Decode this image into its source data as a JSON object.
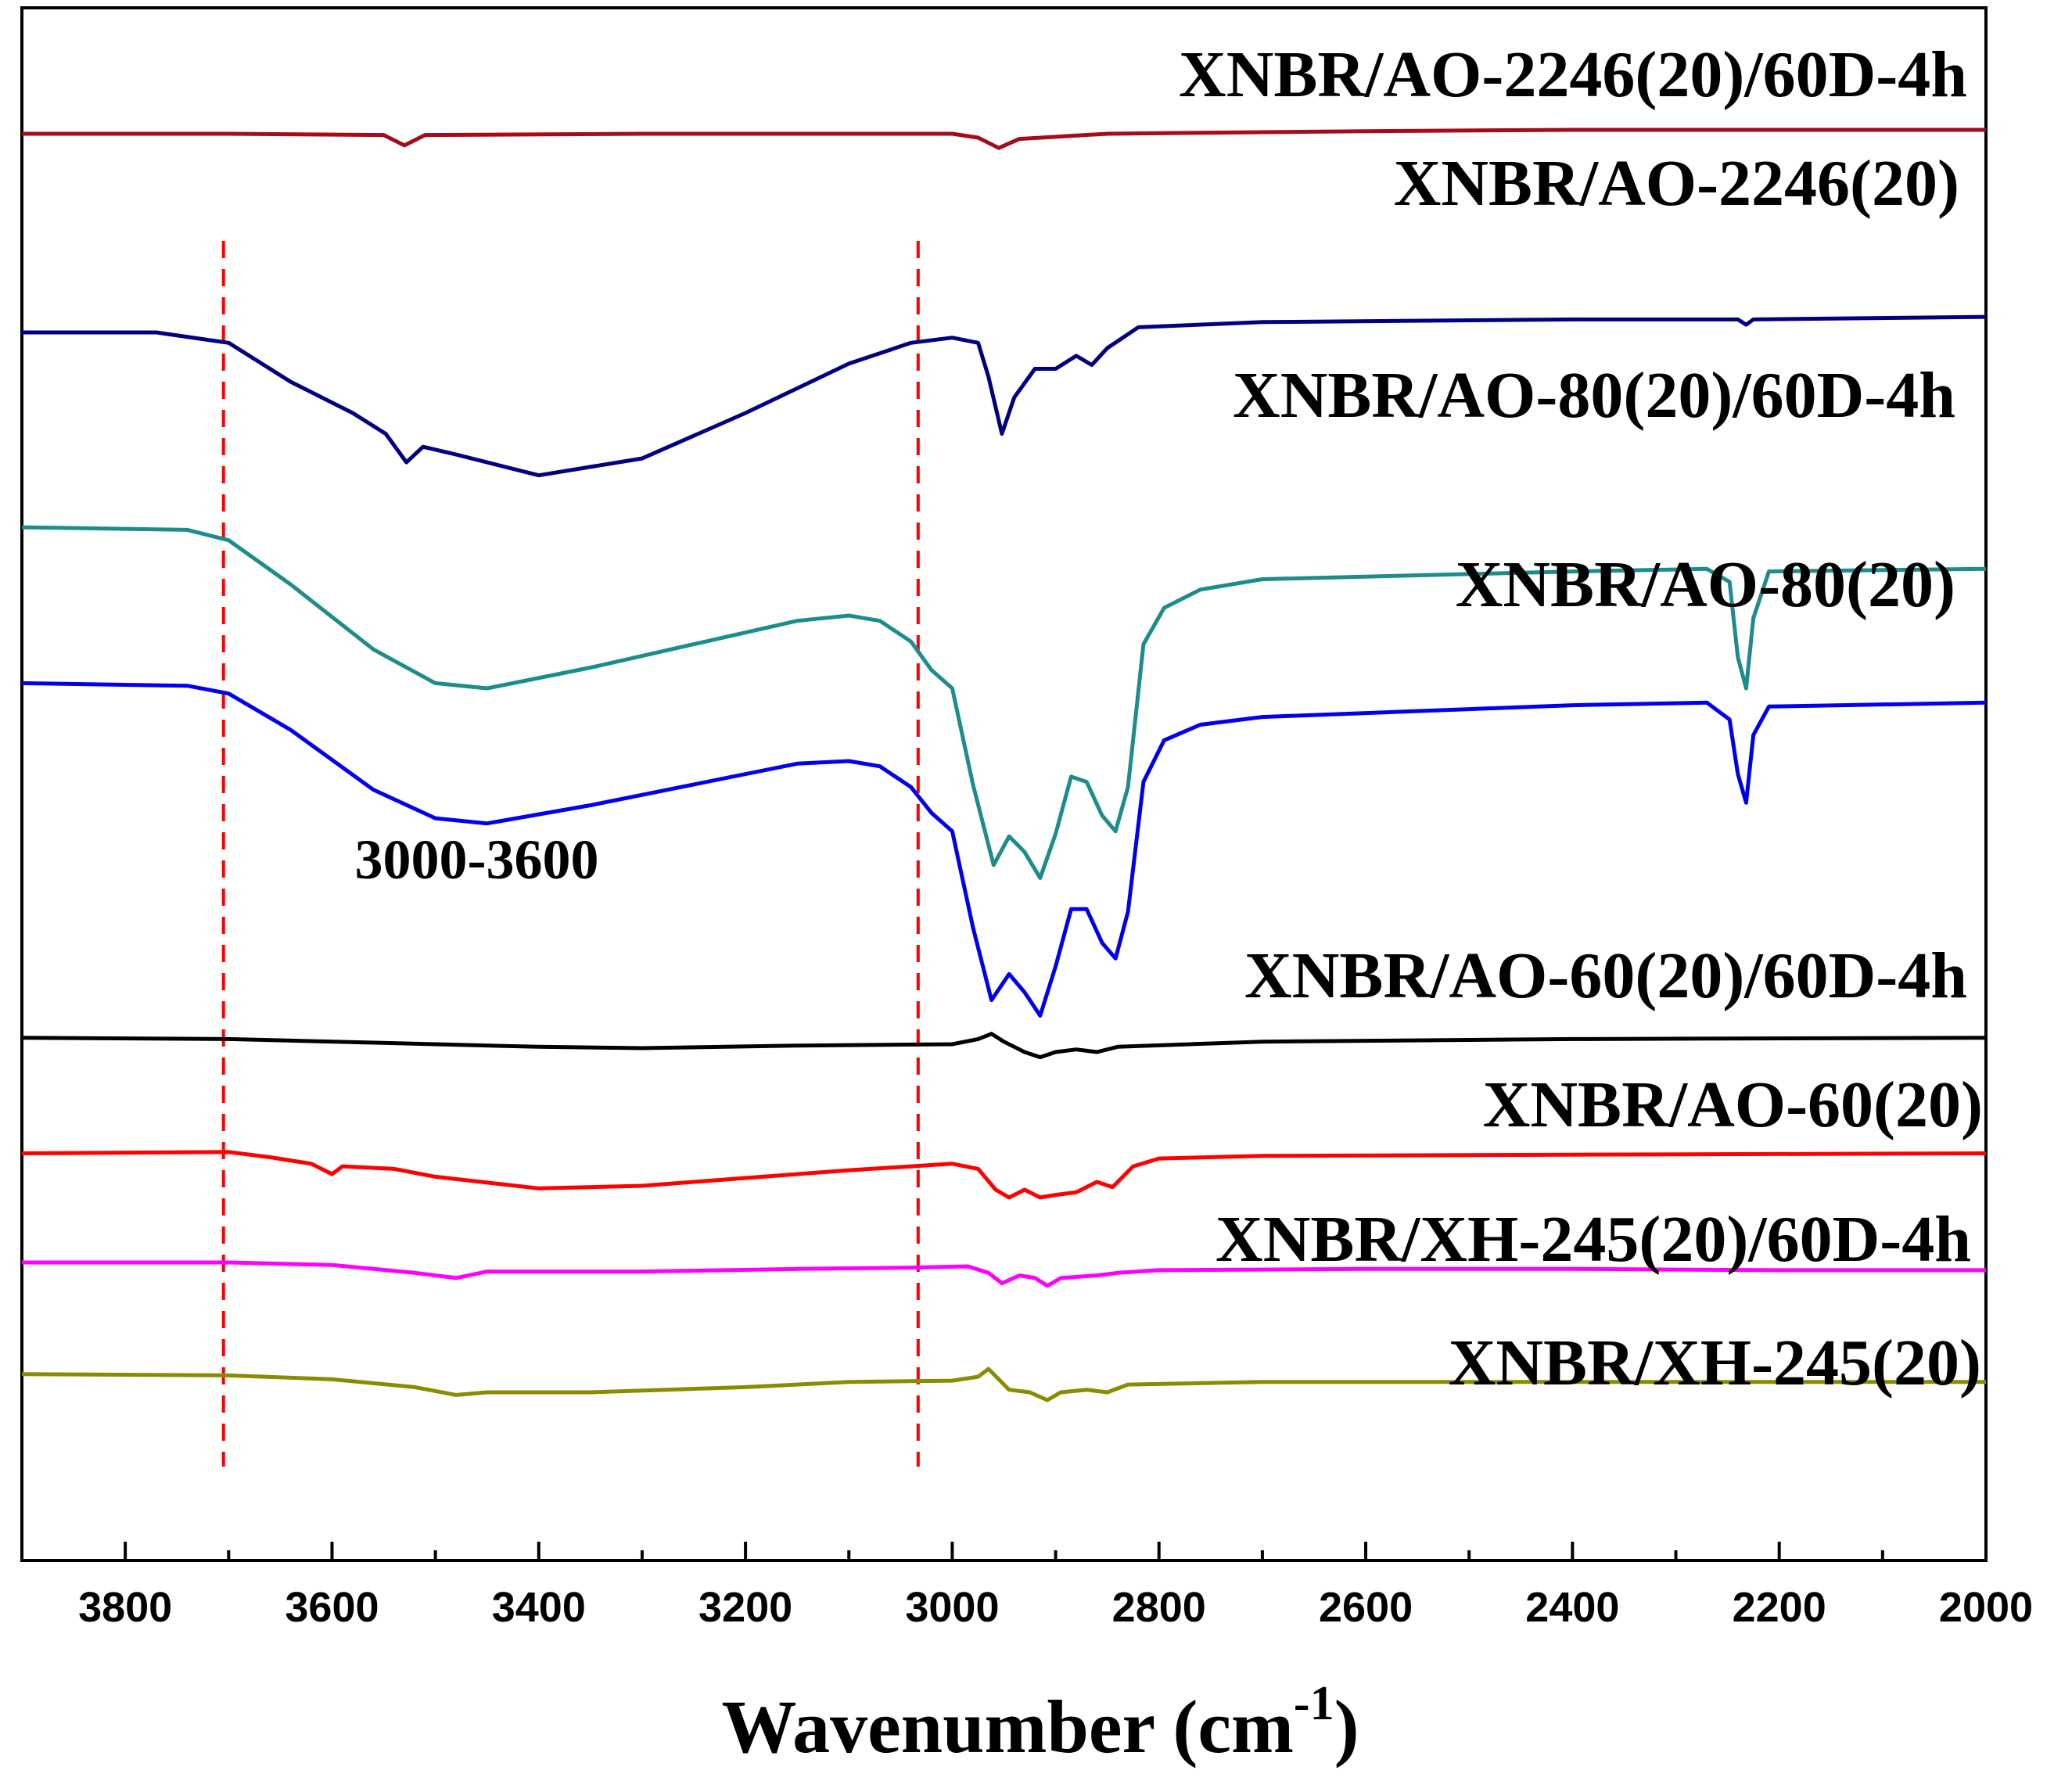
{
  "chart_data": {
    "type": "line",
    "title": "",
    "xlabel": "Wavenumber (cm",
    "xlabel_sup": "-1",
    "xlabel_close": ")",
    "ylabel": "",
    "xlim": [
      3900,
      2000
    ],
    "x_reversed": true,
    "y_axis_visible": false,
    "grid": false,
    "ticks": [
      {
        "value": 3800,
        "label": "3800"
      },
      {
        "value": 3600,
        "label": "3600"
      },
      {
        "value": 3400,
        "label": "3400"
      },
      {
        "value": 3200,
        "label": "3200"
      },
      {
        "value": 3000,
        "label": "3000"
      },
      {
        "value": 2800,
        "label": "2800"
      },
      {
        "value": 2600,
        "label": "2600"
      },
      {
        "value": 2400,
        "label": "2400"
      },
      {
        "value": 2200,
        "label": "2200"
      },
      {
        "value": 2000,
        "label": "2000"
      }
    ],
    "reference_lines": [
      {
        "x": 3705,
        "color": "#ff0000",
        "style": "dashed"
      },
      {
        "x": 3033,
        "color": "#ff0000",
        "style": "dashed"
      }
    ],
    "annotation": {
      "text": "3000-3600",
      "x": 3460
    },
    "y_units": "relative transmittance (stacked, offset per series; higher = less absorbance)",
    "series": [
      {
        "name": "XNBR/AO-2246(20)/60D-4h",
        "color": "#a50b18",
        "points": [
          [
            3900,
            8.83
          ],
          [
            3700,
            8.83
          ],
          [
            3550,
            8.82
          ],
          [
            3530,
            8.74
          ],
          [
            3510,
            8.82
          ],
          [
            3300,
            8.83
          ],
          [
            3000,
            8.83
          ],
          [
            2975,
            8.8
          ],
          [
            2955,
            8.72
          ],
          [
            2935,
            8.79
          ],
          [
            2850,
            8.83
          ],
          [
            2600,
            8.85
          ],
          [
            2400,
            8.86
          ],
          [
            2000,
            8.86
          ]
        ]
      },
      {
        "name": "XNBR/AO-2246(20)",
        "color": "#000080",
        "points": [
          [
            3900,
            7.3
          ],
          [
            3770,
            7.3
          ],
          [
            3700,
            7.22
          ],
          [
            3640,
            6.92
          ],
          [
            3580,
            6.68
          ],
          [
            3548,
            6.52
          ],
          [
            3528,
            6.3
          ],
          [
            3512,
            6.42
          ],
          [
            3480,
            6.36
          ],
          [
            3400,
            6.2
          ],
          [
            3300,
            6.33
          ],
          [
            3200,
            6.68
          ],
          [
            3100,
            7.06
          ],
          [
            3040,
            7.22
          ],
          [
            3000,
            7.26
          ],
          [
            2975,
            7.22
          ],
          [
            2965,
            6.96
          ],
          [
            2952,
            6.52
          ],
          [
            2940,
            6.8
          ],
          [
            2920,
            7.02
          ],
          [
            2900,
            7.02
          ],
          [
            2880,
            7.12
          ],
          [
            2865,
            7.05
          ],
          [
            2850,
            7.18
          ],
          [
            2820,
            7.34
          ],
          [
            2700,
            7.38
          ],
          [
            2400,
            7.4
          ],
          [
            2240,
            7.4
          ],
          [
            2232,
            7.36
          ],
          [
            2225,
            7.4
          ],
          [
            2000,
            7.42
          ]
        ]
      },
      {
        "name": "XNBR/AO-80(20)/60D-4h",
        "color": "#1c8c8c",
        "points": [
          [
            3900,
            5.8
          ],
          [
            3740,
            5.78
          ],
          [
            3700,
            5.7
          ],
          [
            3640,
            5.36
          ],
          [
            3560,
            4.86
          ],
          [
            3500,
            4.6
          ],
          [
            3450,
            4.56
          ],
          [
            3350,
            4.72
          ],
          [
            3250,
            4.9
          ],
          [
            3150,
            5.08
          ],
          [
            3100,
            5.12
          ],
          [
            3070,
            5.08
          ],
          [
            3040,
            4.92
          ],
          [
            3020,
            4.7
          ],
          [
            3000,
            4.56
          ],
          [
            2980,
            3.82
          ],
          [
            2960,
            3.2
          ],
          [
            2945,
            3.42
          ],
          [
            2930,
            3.3
          ],
          [
            2915,
            3.1
          ],
          [
            2900,
            3.44
          ],
          [
            2885,
            3.88
          ],
          [
            2870,
            3.84
          ],
          [
            2855,
            3.58
          ],
          [
            2842,
            3.46
          ],
          [
            2830,
            3.8
          ],
          [
            2815,
            4.9
          ],
          [
            2795,
            5.18
          ],
          [
            2760,
            5.32
          ],
          [
            2700,
            5.4
          ],
          [
            2500,
            5.44
          ],
          [
            2400,
            5.46
          ],
          [
            2270,
            5.48
          ],
          [
            2248,
            5.38
          ],
          [
            2240,
            4.8
          ],
          [
            2232,
            4.56
          ],
          [
            2225,
            5.1
          ],
          [
            2210,
            5.46
          ],
          [
            2000,
            5.48
          ]
        ]
      },
      {
        "name": "XNBR/AO-80(20)",
        "color": "#0000ee",
        "points": [
          [
            3900,
            4.6
          ],
          [
            3740,
            4.58
          ],
          [
            3700,
            4.52
          ],
          [
            3640,
            4.24
          ],
          [
            3560,
            3.78
          ],
          [
            3500,
            3.56
          ],
          [
            3450,
            3.52
          ],
          [
            3350,
            3.66
          ],
          [
            3250,
            3.82
          ],
          [
            3150,
            3.98
          ],
          [
            3100,
            4.0
          ],
          [
            3070,
            3.96
          ],
          [
            3040,
            3.8
          ],
          [
            3020,
            3.6
          ],
          [
            3000,
            3.46
          ],
          [
            2980,
            2.72
          ],
          [
            2962,
            2.16
          ],
          [
            2945,
            2.36
          ],
          [
            2930,
            2.22
          ],
          [
            2915,
            2.04
          ],
          [
            2900,
            2.42
          ],
          [
            2885,
            2.86
          ],
          [
            2870,
            2.86
          ],
          [
            2855,
            2.6
          ],
          [
            2842,
            2.48
          ],
          [
            2830,
            2.84
          ],
          [
            2815,
            3.84
          ],
          [
            2795,
            4.16
          ],
          [
            2760,
            4.28
          ],
          [
            2700,
            4.34
          ],
          [
            2500,
            4.4
          ],
          [
            2400,
            4.43
          ],
          [
            2270,
            4.45
          ],
          [
            2248,
            4.32
          ],
          [
            2240,
            3.9
          ],
          [
            2232,
            3.68
          ],
          [
            2225,
            4.2
          ],
          [
            2210,
            4.42
          ],
          [
            2000,
            4.45
          ]
        ]
      },
      {
        "name": "XNBR/AO-60(20)/60D-4h",
        "color": "#000000",
        "points": [
          [
            3900,
            1.87
          ],
          [
            3700,
            1.86
          ],
          [
            3500,
            1.82
          ],
          [
            3400,
            1.8
          ],
          [
            3300,
            1.79
          ],
          [
            3150,
            1.81
          ],
          [
            3000,
            1.82
          ],
          [
            2975,
            1.86
          ],
          [
            2962,
            1.9
          ],
          [
            2950,
            1.84
          ],
          [
            2930,
            1.76
          ],
          [
            2915,
            1.72
          ],
          [
            2900,
            1.76
          ],
          [
            2880,
            1.78
          ],
          [
            2860,
            1.76
          ],
          [
            2840,
            1.8
          ],
          [
            2700,
            1.84
          ],
          [
            2400,
            1.86
          ],
          [
            2000,
            1.87
          ]
        ]
      },
      {
        "name": "XNBR/AO-60(20)",
        "color": "#ff0000",
        "points": [
          [
            3900,
            0.98
          ],
          [
            3700,
            0.99
          ],
          [
            3660,
            0.95
          ],
          [
            3620,
            0.9
          ],
          [
            3600,
            0.82
          ],
          [
            3590,
            0.88
          ],
          [
            3540,
            0.86
          ],
          [
            3500,
            0.8
          ],
          [
            3400,
            0.71
          ],
          [
            3300,
            0.73
          ],
          [
            3200,
            0.79
          ],
          [
            3100,
            0.85
          ],
          [
            3040,
            0.88
          ],
          [
            3000,
            0.9
          ],
          [
            2975,
            0.86
          ],
          [
            2958,
            0.7
          ],
          [
            2945,
            0.64
          ],
          [
            2930,
            0.7
          ],
          [
            2915,
            0.64
          ],
          [
            2900,
            0.66
          ],
          [
            2880,
            0.68
          ],
          [
            2860,
            0.76
          ],
          [
            2845,
            0.72
          ],
          [
            2825,
            0.88
          ],
          [
            2800,
            0.94
          ],
          [
            2700,
            0.96
          ],
          [
            2400,
            0.97
          ],
          [
            2000,
            0.98
          ]
        ]
      },
      {
        "name": "XNBR/XH-245(20)/60D-4h",
        "color": "#ff00ff",
        "points": [
          [
            3900,
            0.14
          ],
          [
            3700,
            0.14
          ],
          [
            3600,
            0.12
          ],
          [
            3520,
            0.06
          ],
          [
            3480,
            0.02
          ],
          [
            3450,
            0.07
          ],
          [
            3300,
            0.07
          ],
          [
            3150,
            0.09
          ],
          [
            3040,
            0.1
          ],
          [
            2985,
            0.11
          ],
          [
            2965,
            0.06
          ],
          [
            2952,
            -0.02
          ],
          [
            2935,
            0.04
          ],
          [
            2920,
            0.02
          ],
          [
            2908,
            -0.04
          ],
          [
            2895,
            0.02
          ],
          [
            2860,
            0.04
          ],
          [
            2840,
            0.06
          ],
          [
            2800,
            0.08
          ],
          [
            2600,
            0.09
          ],
          [
            2400,
            0.09
          ],
          [
            2200,
            0.08
          ],
          [
            2000,
            0.08
          ]
        ]
      },
      {
        "name": "XNBR/XH-245(20)",
        "color": "#8b8b00",
        "points": [
          [
            3900,
            -0.72
          ],
          [
            3700,
            -0.73
          ],
          [
            3600,
            -0.76
          ],
          [
            3520,
            -0.82
          ],
          [
            3480,
            -0.88
          ],
          [
            3450,
            -0.86
          ],
          [
            3350,
            -0.86
          ],
          [
            3200,
            -0.82
          ],
          [
            3100,
            -0.78
          ],
          [
            3000,
            -0.77
          ],
          [
            2975,
            -0.74
          ],
          [
            2965,
            -0.68
          ],
          [
            2955,
            -0.76
          ],
          [
            2945,
            -0.84
          ],
          [
            2925,
            -0.86
          ],
          [
            2908,
            -0.92
          ],
          [
            2895,
            -0.86
          ],
          [
            2870,
            -0.84
          ],
          [
            2850,
            -0.86
          ],
          [
            2830,
            -0.8
          ],
          [
            2700,
            -0.78
          ],
          [
            2400,
            -0.78
          ],
          [
            2000,
            -0.78
          ]
        ]
      }
    ],
    "series_label_text": [
      "XNBR/AO-2246(20)/60D-4h",
      "XNBR/AO-2246(20)",
      "XNBR/AO-80(20)/60D-4h",
      "XNBR/AO-80(20)",
      "XNBR/AO-60(20)/60D-4h",
      "XNBR/AO-60(20)",
      "XNBR/XH-245(20)/60D-4h",
      "XNBR/XH-245(20)"
    ]
  }
}
